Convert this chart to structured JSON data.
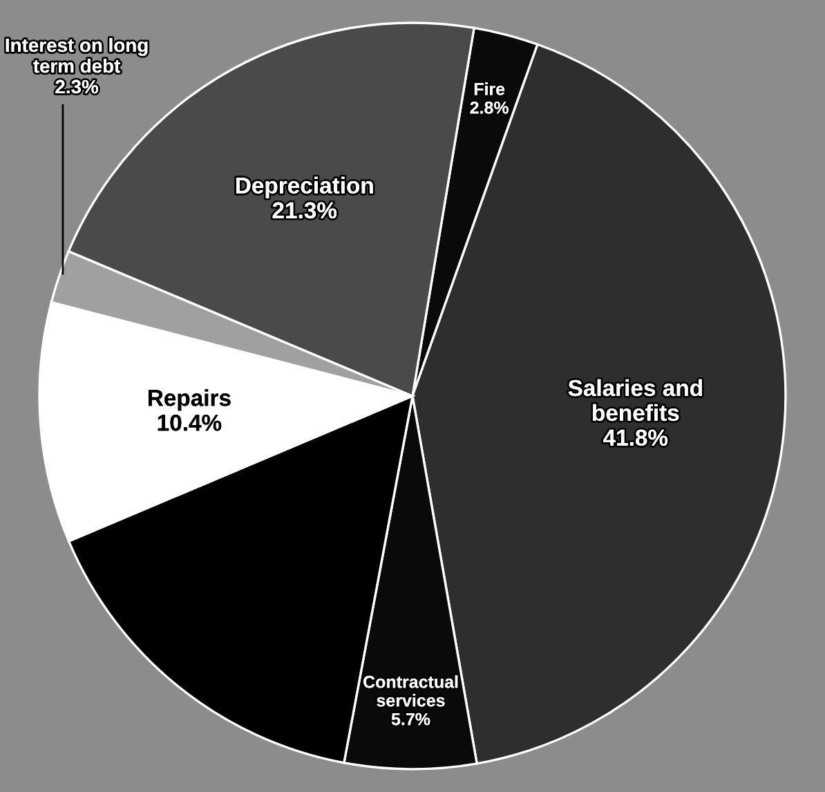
{
  "chart_data": {
    "type": "pie",
    "categories": [
      "Fire",
      "Salaries and\nbenefits",
      "Contractual\nservices",
      null,
      "Repairs",
      "Interest on long\nterm debt",
      "Depreciation"
    ],
    "values": [
      2.8,
      41.8,
      5.7,
      15.7,
      10.4,
      2.3,
      21.3
    ],
    "colors": [
      "#0a0a0a",
      "#2e2e2e",
      "#0a0a0a",
      "#000000",
      "#ffffff",
      "#a0a0a0",
      "#4a4a4a"
    ],
    "value_labels": [
      "2.8%",
      "41.8%",
      "5.7%",
      null,
      "10.4%",
      "2.3%",
      "21.3%"
    ]
  }
}
